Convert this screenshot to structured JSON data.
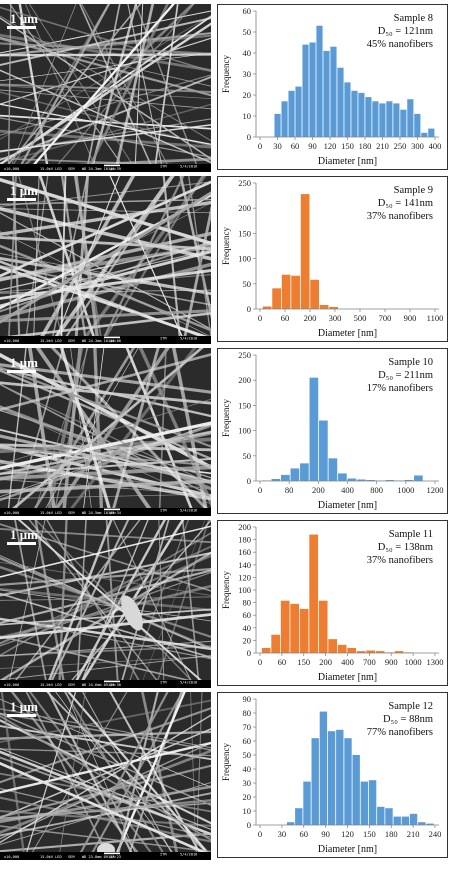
{
  "colors": {
    "blue": "#5b9bd5",
    "orange": "#ed7d31",
    "sem_dark": "#2b2b2b",
    "sem_fiber": "#cfcfcf"
  },
  "panels": [
    {
      "sem": {
        "scale_label": "1 μm",
        "footer_left": "x10,000",
        "footer_mid": "15.0kV LED",
        "footer_sem": "SEM",
        "footer_wd": "WD 24.3mm 10:16:39",
        "footer_scale": "1μm",
        "footer_org": "ITM",
        "footer_date": "5/4/2016"
      },
      "chart_data": {
        "type": "bar",
        "color": "#5b9bd5",
        "title": "Sample 8",
        "d50": "D₅₀ = 121nm",
        "note": "45% nanofibers",
        "xlabel": "Diameter [nm]",
        "ylabel": "Frequency",
        "xlim": [
          0,
          405
        ],
        "ylim": [
          0,
          60
        ],
        "xticks": [
          0,
          30,
          60,
          90,
          120,
          150,
          180,
          210,
          250,
          300,
          400
        ],
        "xtick_labels": [
          "0",
          "30",
          "60",
          "90",
          "120",
          "150",
          "180",
          "210",
          "250",
          "300",
          "400"
        ],
        "yticks": [
          0,
          10,
          20,
          30,
          40,
          50,
          60
        ],
        "x": [
          40,
          50,
          60,
          70,
          80,
          90,
          100,
          110,
          120,
          130,
          140,
          150,
          160,
          170,
          180,
          190,
          200,
          210,
          250,
          270,
          300,
          350,
          400
        ],
        "values": [
          11,
          17,
          22,
          24,
          44,
          45,
          53,
          41,
          43,
          33,
          26,
          22,
          21,
          19,
          17,
          16,
          17,
          16,
          13,
          18,
          11,
          2,
          4
        ]
      }
    },
    {
      "sem": {
        "scale_label": "1 μm",
        "footer_left": "x10,000",
        "footer_mid": "15.0kV LED",
        "footer_sem": "SEM",
        "footer_wd": "WD 24.3mm 10:10:08",
        "footer_scale": "1μm",
        "footer_org": "ITM",
        "footer_date": "5/4/2016"
      },
      "chart_data": {
        "type": "bar",
        "color": "#ed7d31",
        "title": "Sample 9",
        "d50": "D₅₀ = 141nm",
        "note": "37% nanofibers",
        "xlabel": "Diameter [nm]",
        "ylabel": "Frequency",
        "xlim": [
          0,
          1150
        ],
        "ylim": [
          0,
          250
        ],
        "xticks": [
          0,
          60,
          200,
          300,
          500,
          700,
          900,
          1100
        ],
        "xtick_labels": [
          "0",
          "60",
          "200",
          "300",
          "500",
          "700",
          "900",
          "1100"
        ],
        "yticks": [
          0,
          50,
          100,
          150,
          200,
          250
        ],
        "x": [
          40,
          60,
          100,
          150,
          200,
          250,
          300,
          400
        ],
        "values": [
          5,
          41,
          68,
          66,
          228,
          58,
          8,
          4
        ]
      }
    },
    {
      "sem": {
        "scale_label": "1 μm",
        "footer_left": "x10,000",
        "footer_mid": "15.0kV LED",
        "footer_sem": "SEM",
        "footer_wd": "WD 24.5mm 10:03:34",
        "footer_scale": "1μm",
        "footer_org": "ITM",
        "footer_date": "5/4/2016"
      },
      "chart_data": {
        "type": "bar",
        "color": "#5b9bd5",
        "title": "Sample 10",
        "d50": "D₅₀ = 211nm",
        "note": "17% nanofibers",
        "xlabel": "Diameter [nm]",
        "ylabel": "Frequency",
        "xlim": [
          0,
          1300
        ],
        "ylim": [
          0,
          250
        ],
        "xticks": [
          0,
          80,
          200,
          400,
          800,
          1000,
          1200
        ],
        "xtick_labels": [
          "0",
          "80",
          "200",
          "400",
          "800",
          "1000",
          "1200"
        ],
        "yticks": [
          0,
          50,
          100,
          150,
          200,
          250
        ],
        "x": [
          40,
          60,
          80,
          100,
          150,
          200,
          250,
          300,
          400,
          500,
          600,
          700,
          800,
          900,
          1000,
          1100,
          1200
        ],
        "values": [
          1,
          4,
          12,
          25,
          35,
          205,
          120,
          45,
          15,
          5,
          3,
          2,
          1,
          2,
          1,
          2,
          11
        ]
      }
    },
    {
      "sem": {
        "scale_label": "1 μm",
        "footer_left": "x10,000",
        "footer_mid": "15.0kV LED",
        "footer_sem": "SEM",
        "footer_wd": "WD 24.6mm 09:59:30",
        "footer_scale": "1μm",
        "footer_org": "ITM",
        "footer_date": "5/4/2016"
      },
      "chart_data": {
        "type": "bar",
        "color": "#ed7d31",
        "title": "Sample 11",
        "d50": "D₅₀ = 138nm",
        "note": "37% nanofibers",
        "xlabel": "Diameter [nm]",
        "ylabel": "Frequency",
        "xlim": [
          0,
          1350
        ],
        "ylim": [
          0,
          200
        ],
        "xticks": [
          0,
          60,
          150,
          200,
          400,
          700,
          900,
          1000,
          1300
        ],
        "xtick_labels": [
          "0",
          "60",
          "150",
          "200",
          "400",
          "700",
          "900",
          "1000",
          "1300"
        ],
        "yticks": [
          0,
          20,
          40,
          60,
          80,
          100,
          120,
          140,
          160,
          180,
          200
        ],
        "x": [
          40,
          60,
          80,
          100,
          120,
          150,
          200,
          250,
          300,
          400,
          500,
          600,
          700,
          800,
          900,
          1000
        ],
        "values": [
          8,
          29,
          83,
          78,
          70,
          188,
          83,
          22,
          13,
          8,
          3,
          4,
          3,
          1,
          3,
          1
        ]
      }
    },
    {
      "sem": {
        "scale_label": "1 μm",
        "footer_left": "x10,000",
        "footer_mid": "15.0kV LED",
        "footer_sem": "SEM",
        "footer_wd": "WD 23.8mm 09:37:23",
        "footer_scale": "1μm",
        "footer_org": "ITM",
        "footer_date": "5/4/2016"
      },
      "chart_data": {
        "type": "bar",
        "color": "#5b9bd5",
        "title": "Sample 12",
        "d50": "D₅₀ = 88nm",
        "note": "77% nanofibers",
        "xlabel": "Diameter [nm]",
        "ylabel": "Frequency",
        "xlim": [
          0,
          240
        ],
        "ylim": [
          0,
          90
        ],
        "xticks": [
          0,
          30,
          60,
          90,
          120,
          150,
          180,
          210,
          240
        ],
        "xtick_labels": [
          "0",
          "30",
          "60",
          "90",
          "120",
          "150",
          "180",
          "210",
          "240"
        ],
        "yticks": [
          0,
          10,
          20,
          30,
          40,
          50,
          60,
          70,
          80,
          90
        ],
        "x": [
          40,
          50,
          60,
          70,
          80,
          90,
          100,
          110,
          120,
          130,
          140,
          150,
          160,
          170,
          180,
          190,
          200,
          210
        ],
        "values": [
          2,
          12,
          31,
          62,
          81,
          67,
          68,
          62,
          50,
          31,
          32,
          13,
          12,
          6,
          6,
          8,
          2,
          1
        ]
      }
    }
  ]
}
